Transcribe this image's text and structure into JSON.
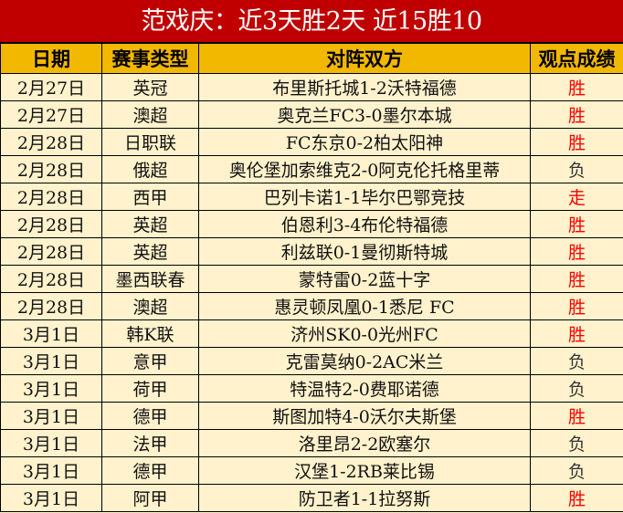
{
  "title": "范戏庆：近3天胜2天 近15胜10",
  "headers": [
    "日期",
    "赛事类型",
    "对阵双方",
    "观点成绩"
  ],
  "colors": {
    "title_bg": "#C00000",
    "header_bg": "#F2B800",
    "body_bg": "#FFF2CC",
    "win": "#FF0000",
    "loss": "#333333"
  },
  "rows": [
    {
      "date": "2月27日",
      "league": "英冠",
      "match": "布里斯托城1-2沃特福德",
      "result": "胜"
    },
    {
      "date": "2月27日",
      "league": "澳超",
      "match": "奥克兰FC3-0墨尔本城",
      "result": "胜"
    },
    {
      "date": "2月28日",
      "league": "日职联",
      "match": "FC东京0-2柏太阳神",
      "result": "胜"
    },
    {
      "date": "2月28日",
      "league": "俄超",
      "match": "奥伦堡加索维克2-0阿克伦托格里蒂",
      "result": "负"
    },
    {
      "date": "2月28日",
      "league": "西甲",
      "match": "巴列卡诺1-1毕尔巴鄂竞技",
      "result": "走"
    },
    {
      "date": "2月28日",
      "league": "英超",
      "match": "伯恩利3-4布伦特福德",
      "result": "胜"
    },
    {
      "date": "2月28日",
      "league": "英超",
      "match": "利兹联0-1曼彻斯特城",
      "result": "胜"
    },
    {
      "date": "2月28日",
      "league": "墨西联春",
      "match": "蒙特雷0-2蓝十字",
      "result": "胜"
    },
    {
      "date": "2月28日",
      "league": "澳超",
      "match": "惠灵顿凤凰0-1悉尼 FC",
      "result": "胜"
    },
    {
      "date": "3月1日",
      "league": "韩K联",
      "match": "济州SK0-0光州FC",
      "result": "胜"
    },
    {
      "date": "3月1日",
      "league": "意甲",
      "match": "克雷莫纳0-2AC米兰",
      "result": "负"
    },
    {
      "date": "3月1日",
      "league": "荷甲",
      "match": "特温特2-0费耶诺德",
      "result": "负"
    },
    {
      "date": "3月1日",
      "league": "德甲",
      "match": "斯图加特4-0沃尔夫斯堡",
      "result": "胜"
    },
    {
      "date": "3月1日",
      "league": "法甲",
      "match": "洛里昂2-2欧塞尔",
      "result": "负"
    },
    {
      "date": "3月1日",
      "league": "德甲",
      "match": "汉堡1-2RB莱比锡",
      "result": "负"
    },
    {
      "date": "3月1日",
      "league": "阿甲",
      "match": "防卫者1-1拉努斯",
      "result": "胜"
    }
  ]
}
